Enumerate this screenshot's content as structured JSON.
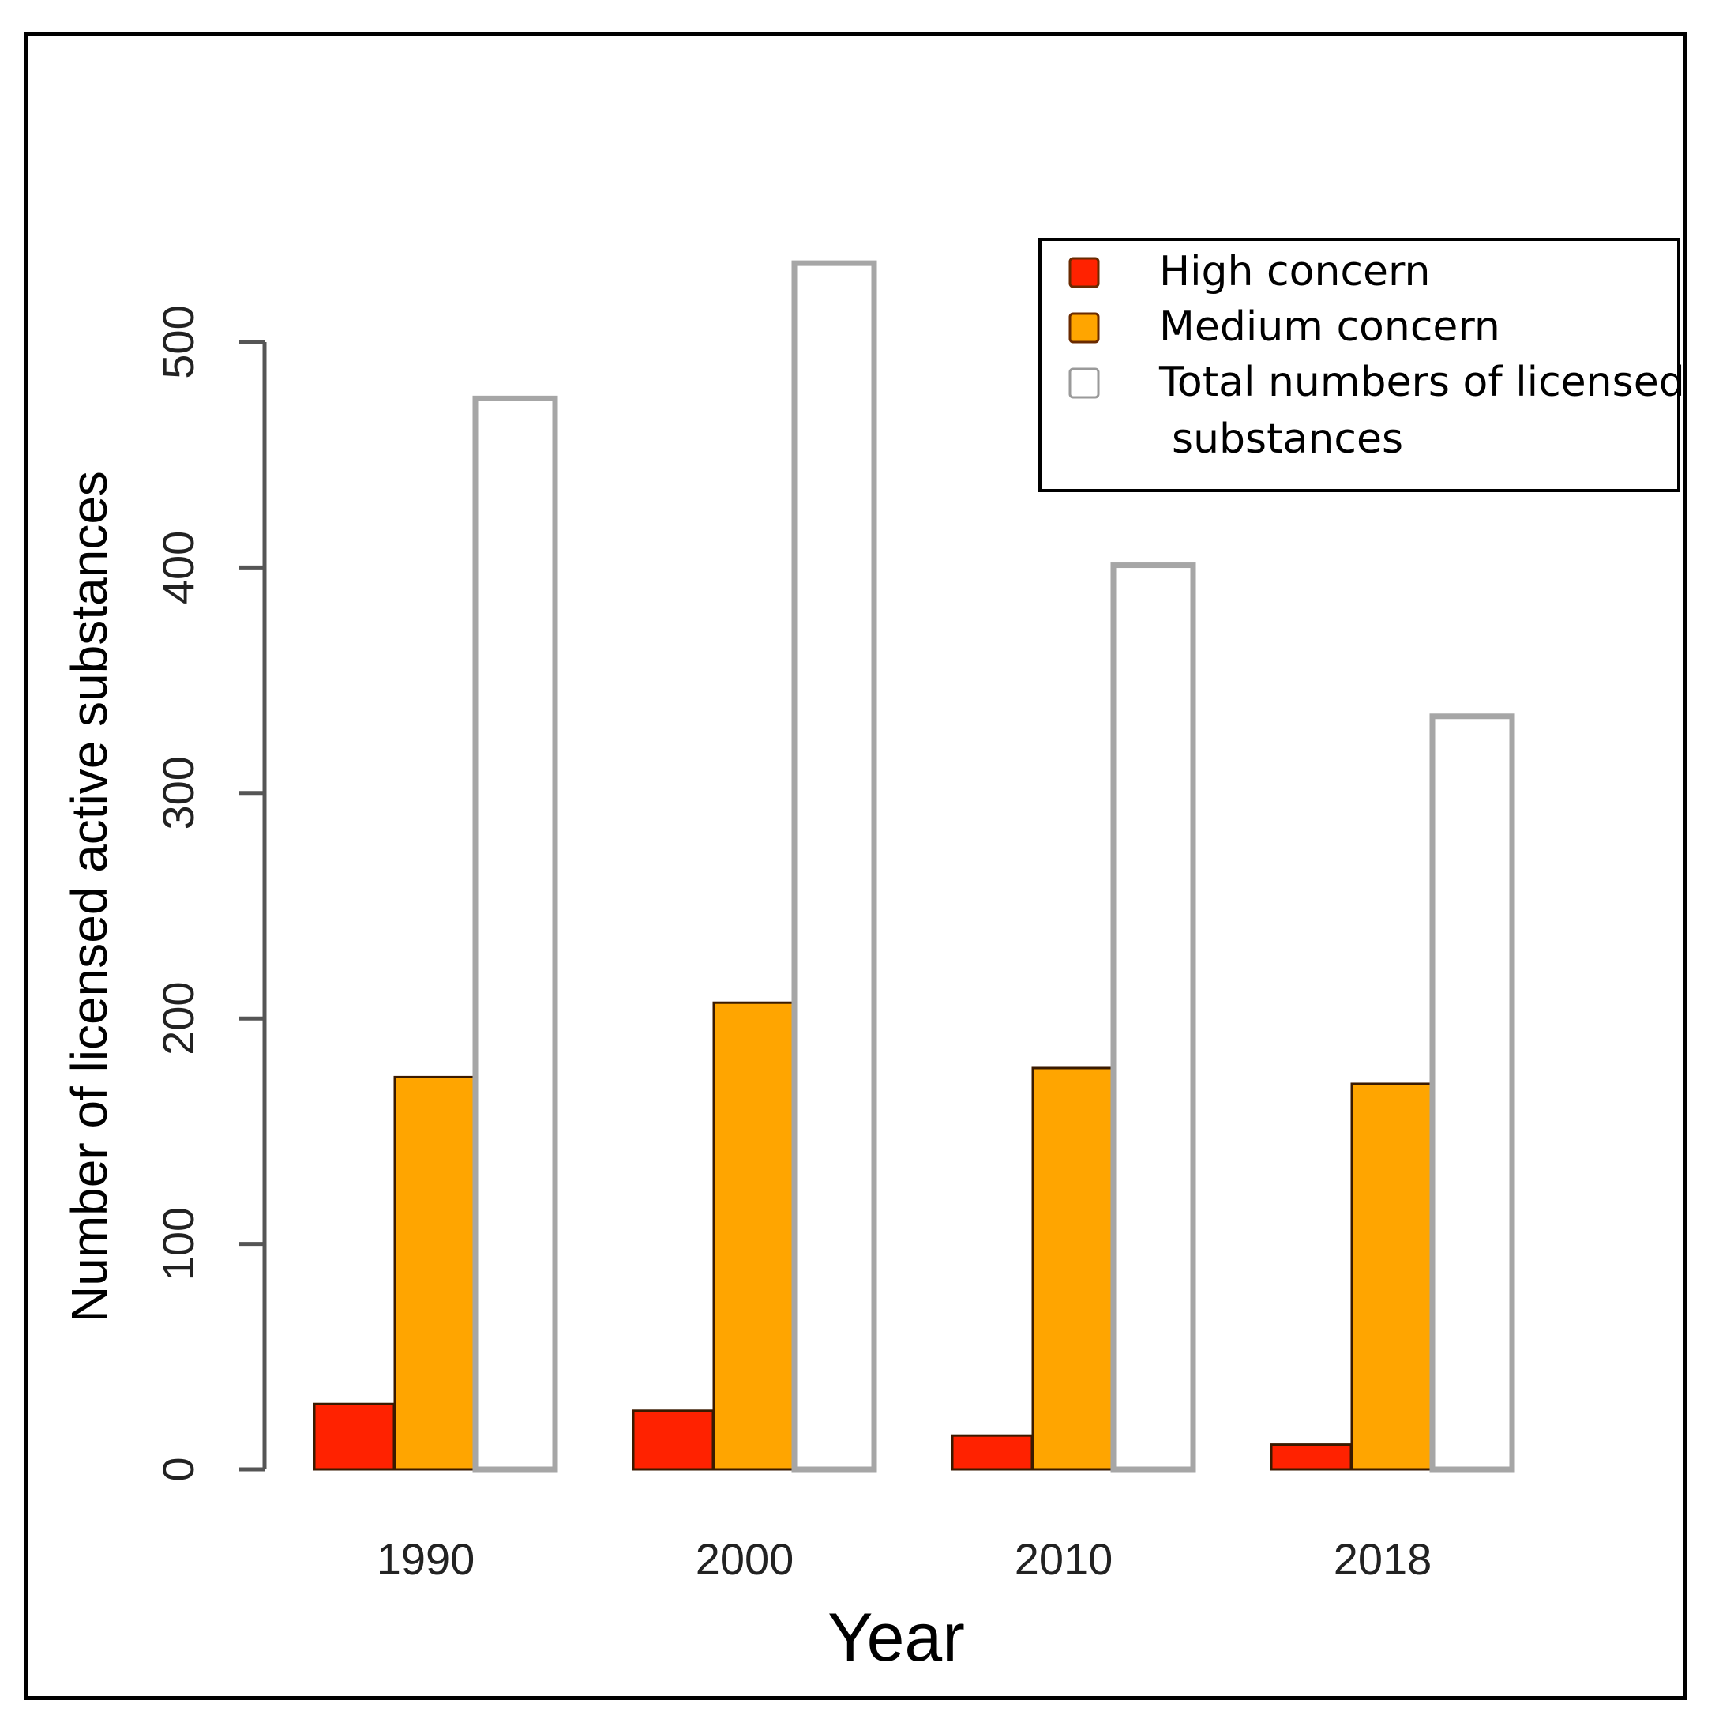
{
  "chart_data": {
    "type": "bar",
    "title": "",
    "xlabel": "Year",
    "ylabel": "Number of licensed active substances",
    "categories": [
      "1990",
      "2000",
      "2010",
      "2018"
    ],
    "series": [
      {
        "name": "High concern",
        "color": "#ff2200",
        "values": [
          29,
          26,
          15,
          11
        ]
      },
      {
        "name": "Medium concern",
        "color": "#ffa500",
        "values": [
          174,
          207,
          178,
          171
        ]
      },
      {
        "name": "Total numbers of licensed substances",
        "color": "#ffffff",
        "values": [
          475,
          535,
          401,
          334
        ]
      }
    ],
    "ylim": [
      0,
      500
    ],
    "yticks": [
      0,
      100,
      200,
      300,
      400,
      500
    ],
    "grid": false,
    "legend_position": "top-right",
    "legend_lines": [
      [
        "High concern"
      ],
      [
        "Medium concern"
      ],
      [
        "Total numbers of licensed",
        "substances"
      ]
    ]
  }
}
